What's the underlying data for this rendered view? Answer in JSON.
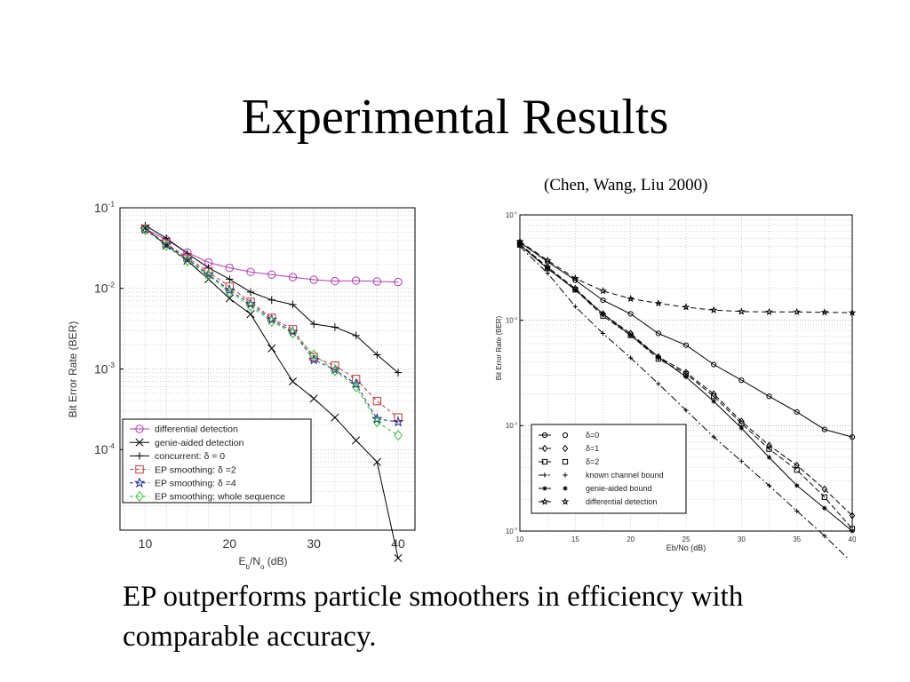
{
  "slide": {
    "title": "Experimental Results",
    "citation": "(Chen, Wang, Liu 2000)",
    "caption": "EP outperforms particle smoothers in efficiency with comparable accuracy."
  },
  "chart_data": [
    {
      "type": "line",
      "xlabel_main": "E",
      "xlabel_sub1": "b",
      "xlabel_mid": "/N",
      "xlabel_sub2": "o",
      "xlabel_end": " (dB)",
      "ylabel": "Bit Error Rate (BER)",
      "yscale": "log",
      "xlim": [
        7,
        42
      ],
      "ylim_exp": [
        -5,
        -1
      ],
      "xticks": [
        "10",
        "20",
        "30",
        "40"
      ],
      "yticks": [
        {
          "exp": -1,
          "base": "10",
          "sup": "-1"
        },
        {
          "exp": -2,
          "base": "10",
          "sup": "-2"
        },
        {
          "exp": -3,
          "base": "10",
          "sup": "-3"
        },
        {
          "exp": -4,
          "base": "10",
          "sup": "-4"
        }
      ],
      "grid": true,
      "legend_position": "bottom-left",
      "x": [
        10,
        12.5,
        15,
        17.5,
        20,
        22.5,
        25,
        27.5,
        30,
        32.5,
        35,
        37.5,
        40
      ],
      "series": [
        {
          "name": "differential detection",
          "marker": "circle",
          "color": "#b13cb1",
          "dash": "",
          "values": [
            0.055,
            0.04,
            0.028,
            0.021,
            0.018,
            0.016,
            0.0148,
            0.0138,
            0.0128,
            0.0123,
            0.0125,
            0.0122,
            0.012
          ]
        },
        {
          "name": "genie-aided detection",
          "marker": "x",
          "color": "#000000",
          "dash": "",
          "values": [
            0.056,
            0.034,
            0.022,
            0.013,
            0.0075,
            0.0048,
            0.0018,
            0.0007,
            0.00043,
            0.00025,
            0.00013,
            7e-05,
            4.5e-06
          ]
        },
        {
          "name": "concurrent: δ = 0",
          "marker": "plus",
          "color": "#000000",
          "dash": "",
          "values": [
            0.06,
            0.042,
            0.027,
            0.018,
            0.013,
            0.009,
            0.0072,
            0.0063,
            0.0036,
            0.0033,
            0.0026,
            0.0015,
            0.0009
          ]
        },
        {
          "name": "EP smoothing: δ =2",
          "marker": "square",
          "color": "#c0393b",
          "dash": "4,3",
          "values": [
            0.055,
            0.036,
            0.024,
            0.016,
            0.0105,
            0.0068,
            0.0043,
            0.0031,
            0.0014,
            0.0011,
            0.00075,
            0.0004,
            0.00025
          ]
        },
        {
          "name": "EP smoothing: δ =4",
          "marker": "star",
          "color": "#1f2d8c",
          "dash": "4,3",
          "values": [
            0.054,
            0.035,
            0.023,
            0.015,
            0.0095,
            0.0064,
            0.0041,
            0.0029,
            0.0013,
            0.00098,
            0.00065,
            0.00024,
            0.00022
          ]
        },
        {
          "name": "EP smoothing: whole sequence",
          "marker": "diamond",
          "color": "#3cc43c",
          "dash": "4,3",
          "values": [
            0.053,
            0.034,
            0.022,
            0.0145,
            0.009,
            0.006,
            0.0039,
            0.0028,
            0.0015,
            0.00095,
            0.0006,
            0.00022,
            0.00015
          ]
        }
      ]
    },
    {
      "type": "line",
      "xlabel": "Eb/No (dB)",
      "ylabel": "Bit Error Rate (BER)",
      "yscale": "log",
      "xlim": [
        10,
        40
      ],
      "ylim_exp": [
        -4,
        -1
      ],
      "xticks": [
        "10",
        "15",
        "20",
        "25",
        "30",
        "35",
        "40"
      ],
      "yticks": [
        {
          "exp": -1,
          "base": "10",
          "sup": "-1"
        },
        {
          "exp": -2,
          "base": "10",
          "sup": "-2"
        },
        {
          "exp": -3,
          "base": "10",
          "sup": "-3"
        },
        {
          "exp": -4,
          "base": "10",
          "sup": "-4"
        }
      ],
      "grid": true,
      "legend_position": "bottom-right",
      "x": [
        10,
        12.5,
        15,
        17.5,
        20,
        22.5,
        25,
        27.5,
        30,
        32.5,
        35,
        37.5,
        40
      ],
      "series": [
        {
          "name": "δ=0",
          "marker": "circle",
          "dash": "",
          "values": [
            0.055,
            0.036,
            0.024,
            0.0155,
            0.0115,
            0.0075,
            0.0058,
            0.0038,
            0.0027,
            0.0019,
            0.00135,
            0.00092,
            0.00078
          ]
        },
        {
          "name": "δ=1",
          "marker": "diamond",
          "dash": "6,3",
          "values": [
            0.053,
            0.032,
            0.02,
            0.0115,
            0.0075,
            0.0045,
            0.0032,
            0.002,
            0.0011,
            0.00065,
            0.00042,
            0.00025,
            0.00014
          ]
        },
        {
          "name": "δ=2",
          "marker": "square",
          "dash": "6,3",
          "values": [
            0.052,
            0.031,
            0.0195,
            0.011,
            0.0072,
            0.0043,
            0.0031,
            0.0019,
            0.00105,
            0.0006,
            0.00038,
            0.00021,
            0.000105
          ]
        },
        {
          "name": "known channel bound",
          "marker": "plus",
          "dash": "8,3,2,3",
          "values": [
            0.05,
            0.028,
            0.0135,
            0.0075,
            0.0044,
            0.0025,
            0.0014,
            0.00078,
            0.00046,
            0.00027,
            0.000155,
            9e-05,
            5e-05
          ]
        },
        {
          "name": "genie-aided bound",
          "marker": "asterisk",
          "dash": "",
          "values": [
            0.052,
            0.031,
            0.0195,
            0.0115,
            0.0072,
            0.0045,
            0.0029,
            0.0017,
            0.00095,
            0.0005,
            0.00027,
            0.000165,
            0.0001
          ]
        },
        {
          "name": "differential detection",
          "marker": "star",
          "dash": "6,4",
          "values": [
            0.056,
            0.037,
            0.025,
            0.019,
            0.016,
            0.0145,
            0.0133,
            0.0125,
            0.0121,
            0.012,
            0.012,
            0.0119,
            0.0118
          ]
        }
      ]
    }
  ]
}
